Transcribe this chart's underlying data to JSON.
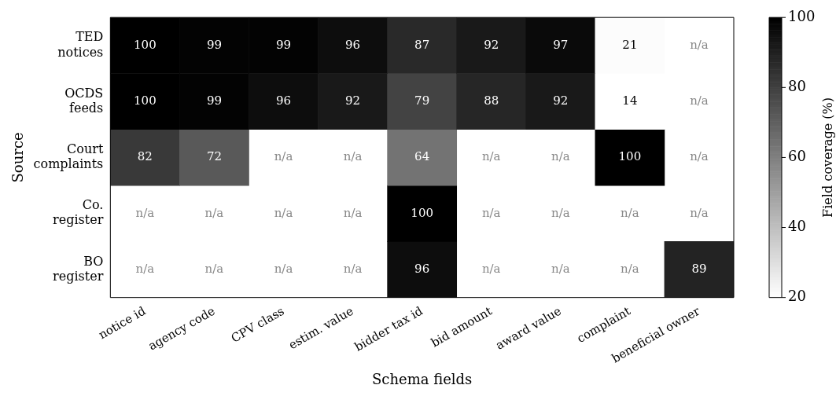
{
  "chart_data": {
    "type": "heatmap",
    "xlabel": "Schema fields",
    "ylabel": "Source",
    "clabel": "Field coverage (%)",
    "categories": [
      "notice id",
      "agency code",
      "CPV class",
      "estim. value",
      "bidder tax id",
      "bid amount",
      "award value",
      "complaint",
      "beneficial owner"
    ],
    "y_categories": [
      "TED notices",
      "OCDS feeds",
      "Court complaints",
      "Co. register",
      "BO register"
    ],
    "cells": [
      [
        100,
        99,
        99,
        96,
        87,
        92,
        97,
        21,
        null
      ],
      [
        100,
        99,
        96,
        92,
        79,
        88,
        92,
        14,
        null
      ],
      [
        82,
        72,
        null,
        null,
        64,
        null,
        null,
        100,
        null
      ],
      [
        null,
        null,
        null,
        null,
        100,
        null,
        null,
        null,
        null
      ],
      [
        null,
        null,
        null,
        null,
        96,
        null,
        null,
        null,
        89
      ]
    ],
    "cell_labels": [
      [
        "100",
        "99",
        "99",
        "96",
        "87",
        "92",
        "97",
        "21",
        "n/a"
      ],
      [
        "100",
        "99",
        "96",
        "92",
        "79",
        "88",
        "92",
        "14",
        "n/a"
      ],
      [
        "82",
        "72",
        "n/a",
        "n/a",
        "64",
        "n/a",
        "n/a",
        "100",
        "n/a"
      ],
      [
        "n/a",
        "n/a",
        "n/a",
        "n/a",
        "100",
        "n/a",
        "n/a",
        "n/a",
        "n/a"
      ],
      [
        "n/a",
        "n/a",
        "n/a",
        "n/a",
        "96",
        "n/a",
        "n/a",
        "n/a",
        "89"
      ]
    ],
    "clim": [
      20,
      100
    ],
    "cticks": [
      20,
      40,
      60,
      80,
      100
    ],
    "data_labels": true
  }
}
